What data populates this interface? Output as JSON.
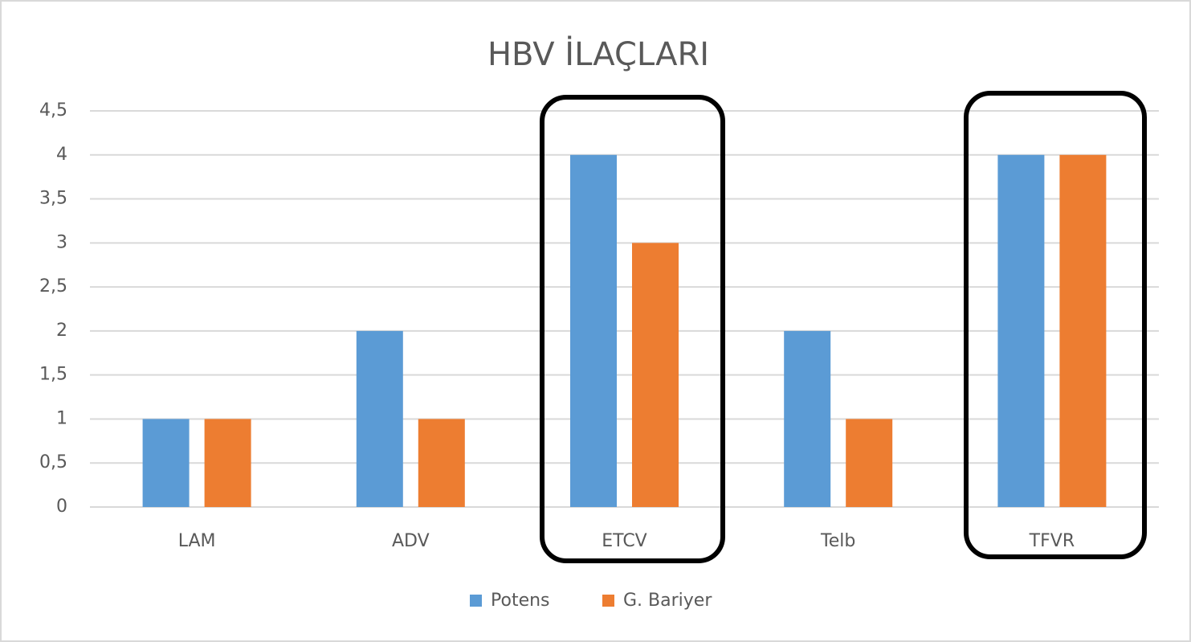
{
  "chart_data": {
    "type": "bar",
    "title": "HBV İLAÇLARI",
    "categories": [
      "LAM",
      "ADV",
      "ETCV",
      "Telb",
      "TFVR"
    ],
    "series": [
      {
        "name": "Potens",
        "color": "#5b9bd5",
        "values": [
          1,
          2,
          4,
          2,
          4
        ]
      },
      {
        "name": "G. Bariyer",
        "color": "#ed7d31",
        "values": [
          1,
          1,
          3,
          1,
          4
        ]
      }
    ],
    "ylim": [
      0,
      4.5
    ],
    "yticks": [
      0,
      {
        "value": 0.5,
        "label": "0,5"
      },
      1,
      {
        "value": 1.5,
        "label": "1,5"
      },
      2,
      {
        "value": 2.5,
        "label": "2,5"
      },
      3,
      {
        "value": 3.5,
        "label": "3,5"
      },
      4,
      {
        "value": 4.5,
        "label": "4,5"
      }
    ],
    "grid": true,
    "legend": "bottom"
  }
}
